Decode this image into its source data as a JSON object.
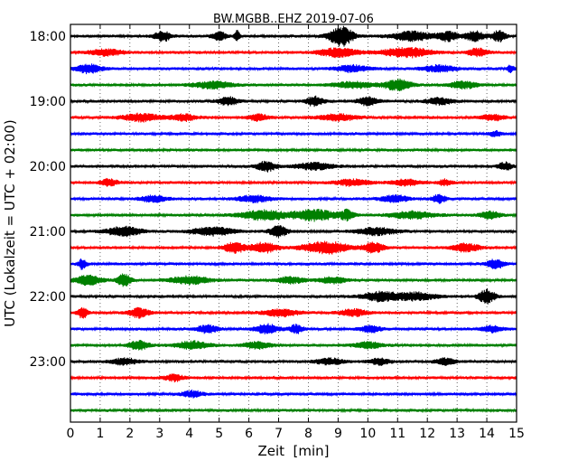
{
  "chart_data": {
    "type": "line",
    "title": "BW.MGBB..EHZ 2019-07-06",
    "xlabel": "Zeit  [min]",
    "ylabel": "UTC (Lokalzeit = UTC + 02:00)",
    "xlim": [
      0,
      15
    ],
    "x_ticks": [
      "0",
      "1",
      "2",
      "3",
      "4",
      "5",
      "6",
      "7",
      "8",
      "9",
      "10",
      "11",
      "12",
      "13",
      "14",
      "15"
    ],
    "y_tick_labels": [
      {
        "row": 0,
        "label": "18:00"
      },
      {
        "row": 4,
        "label": "19:00"
      },
      {
        "row": 8,
        "label": "20:00"
      },
      {
        "row": 12,
        "label": "21:00"
      },
      {
        "row": 16,
        "label": "22:00"
      },
      {
        "row": 20,
        "label": "23:00"
      }
    ],
    "grid": "vertical dotted",
    "color_cycle": [
      "#000000",
      "#ff0000",
      "#0000ff",
      "#008000"
    ],
    "series": [
      {
        "time": "18:00",
        "bursts": [
          [
            3.1,
            0.5,
            1.3
          ],
          [
            5,
            0.4,
            1.1
          ],
          [
            5.6,
            0.15,
            1.4
          ],
          [
            9.1,
            0.7,
            2.6
          ],
          [
            11.5,
            1.2,
            1.2
          ],
          [
            12.7,
            0.6,
            1.2
          ],
          [
            13.6,
            0.6,
            1.2
          ],
          [
            14.4,
            0.4,
            1.4
          ]
        ]
      },
      {
        "time": "18:15",
        "bursts": [
          [
            1.2,
            1,
            0.8
          ],
          [
            9,
            1.2,
            1.1
          ],
          [
            11.3,
            1.5,
            1.2
          ],
          [
            13.7,
            0.6,
            1
          ]
        ]
      },
      {
        "time": "18:30",
        "bursts": [
          [
            0.6,
            0.8,
            1.1
          ],
          [
            9.5,
            1,
            0.8
          ],
          [
            12.4,
            1,
            0.8
          ],
          [
            14.8,
            0.2,
            0.9
          ]
        ]
      },
      {
        "time": "18:45",
        "bursts": [
          [
            4.8,
            1.2,
            0.9
          ],
          [
            9.5,
            1.2,
            0.8
          ],
          [
            11,
            0.8,
            1.4
          ],
          [
            13.2,
            0.8,
            0.9
          ]
        ]
      },
      {
        "time": "19:00",
        "bursts": [
          [
            5.3,
            0.6,
            1
          ],
          [
            8.2,
            0.5,
            1.2
          ],
          [
            10,
            0.6,
            1.1
          ],
          [
            12.4,
            0.8,
            0.8
          ]
        ]
      },
      {
        "time": "19:15",
        "bursts": [
          [
            2.4,
            1.1,
            1
          ],
          [
            3.8,
            0.8,
            0.8
          ],
          [
            6.3,
            0.6,
            0.8
          ],
          [
            9,
            1.1,
            0.8
          ],
          [
            14.2,
            0.7,
            0.7
          ]
        ]
      },
      {
        "time": "19:30",
        "bursts": [
          [
            14.3,
            0.4,
            0.6
          ]
        ]
      },
      {
        "time": "19:45",
        "bursts": []
      },
      {
        "time": "20:00",
        "bursts": [
          [
            6.6,
            0.6,
            1.2
          ],
          [
            8.2,
            1.1,
            0.9
          ],
          [
            14.6,
            0.4,
            1
          ]
        ]
      },
      {
        "time": "20:15",
        "bursts": [
          [
            1.3,
            0.5,
            0.9
          ],
          [
            9.5,
            1,
            0.8
          ],
          [
            11.3,
            0.8,
            0.8
          ],
          [
            12.6,
            0.4,
            0.7
          ]
        ]
      },
      {
        "time": "20:30",
        "bursts": [
          [
            2.8,
            0.8,
            0.8
          ],
          [
            6.2,
            1,
            0.8
          ],
          [
            10.9,
            0.8,
            0.9
          ],
          [
            12.4,
            0.4,
            1
          ]
        ]
      },
      {
        "time": "20:45",
        "bursts": [
          [
            6.5,
            1.4,
            1.2
          ],
          [
            8.2,
            1.3,
            1.4
          ],
          [
            9.3,
            0.4,
            1.2
          ],
          [
            11.5,
            1.3,
            0.9
          ],
          [
            14.1,
            0.6,
            1
          ]
        ]
      },
      {
        "time": "21:00",
        "bursts": [
          [
            1.8,
            1,
            1.2
          ],
          [
            4.8,
            1.3,
            1
          ],
          [
            7,
            0.5,
            1.5
          ],
          [
            10.3,
            1.2,
            0.9
          ]
        ]
      },
      {
        "time": "21:15",
        "bursts": [
          [
            5.5,
            0.6,
            1.4
          ],
          [
            6.5,
            0.8,
            1.3
          ],
          [
            8.6,
            1.4,
            1.5
          ],
          [
            10.2,
            0.6,
            1.3
          ],
          [
            13.3,
            0.8,
            1
          ]
        ]
      },
      {
        "time": "21:30",
        "bursts": [
          [
            0.4,
            0.25,
            1.3
          ],
          [
            14.3,
            0.5,
            1.2
          ]
        ]
      },
      {
        "time": "21:45",
        "bursts": [
          [
            0.6,
            0.8,
            1.2
          ],
          [
            1.8,
            0.4,
            1.6
          ],
          [
            4,
            1.2,
            1
          ],
          [
            7.4,
            0.8,
            0.8
          ],
          [
            8.8,
            0.8,
            0.8
          ]
        ]
      },
      {
        "time": "22:00",
        "bursts": [
          [
            10.4,
            1,
            1.2
          ],
          [
            11.6,
            1.2,
            1
          ],
          [
            14,
            0.5,
            1.7
          ]
        ]
      },
      {
        "time": "22:15",
        "bursts": [
          [
            0.4,
            0.3,
            1.4
          ],
          [
            2.3,
            0.6,
            1.2
          ],
          [
            7.1,
            1,
            0.9
          ],
          [
            9.5,
            0.8,
            0.9
          ]
        ]
      },
      {
        "time": "22:30",
        "bursts": [
          [
            4.6,
            0.6,
            1
          ],
          [
            6.6,
            0.7,
            1.2
          ],
          [
            7.6,
            0.4,
            1.1
          ],
          [
            10.1,
            0.6,
            0.9
          ],
          [
            14.2,
            0.6,
            0.8
          ]
        ]
      },
      {
        "time": "22:45",
        "bursts": [
          [
            2.3,
            0.6,
            1.2
          ],
          [
            4.1,
            1,
            1
          ],
          [
            6.3,
            0.8,
            0.9
          ],
          [
            10,
            0.8,
            0.8
          ]
        ]
      },
      {
        "time": "23:00",
        "bursts": [
          [
            1.8,
            0.8,
            0.8
          ],
          [
            8.7,
            0.8,
            0.8
          ],
          [
            10.4,
            0.6,
            0.8
          ],
          [
            12.6,
            0.6,
            0.8
          ]
        ]
      },
      {
        "time": "23:15",
        "bursts": [
          [
            3.5,
            0.6,
            0.8
          ]
        ]
      },
      {
        "time": "23:30",
        "bursts": [
          [
            4.1,
            0.6,
            0.8
          ]
        ]
      },
      {
        "time": "23:45",
        "bursts": []
      }
    ]
  }
}
